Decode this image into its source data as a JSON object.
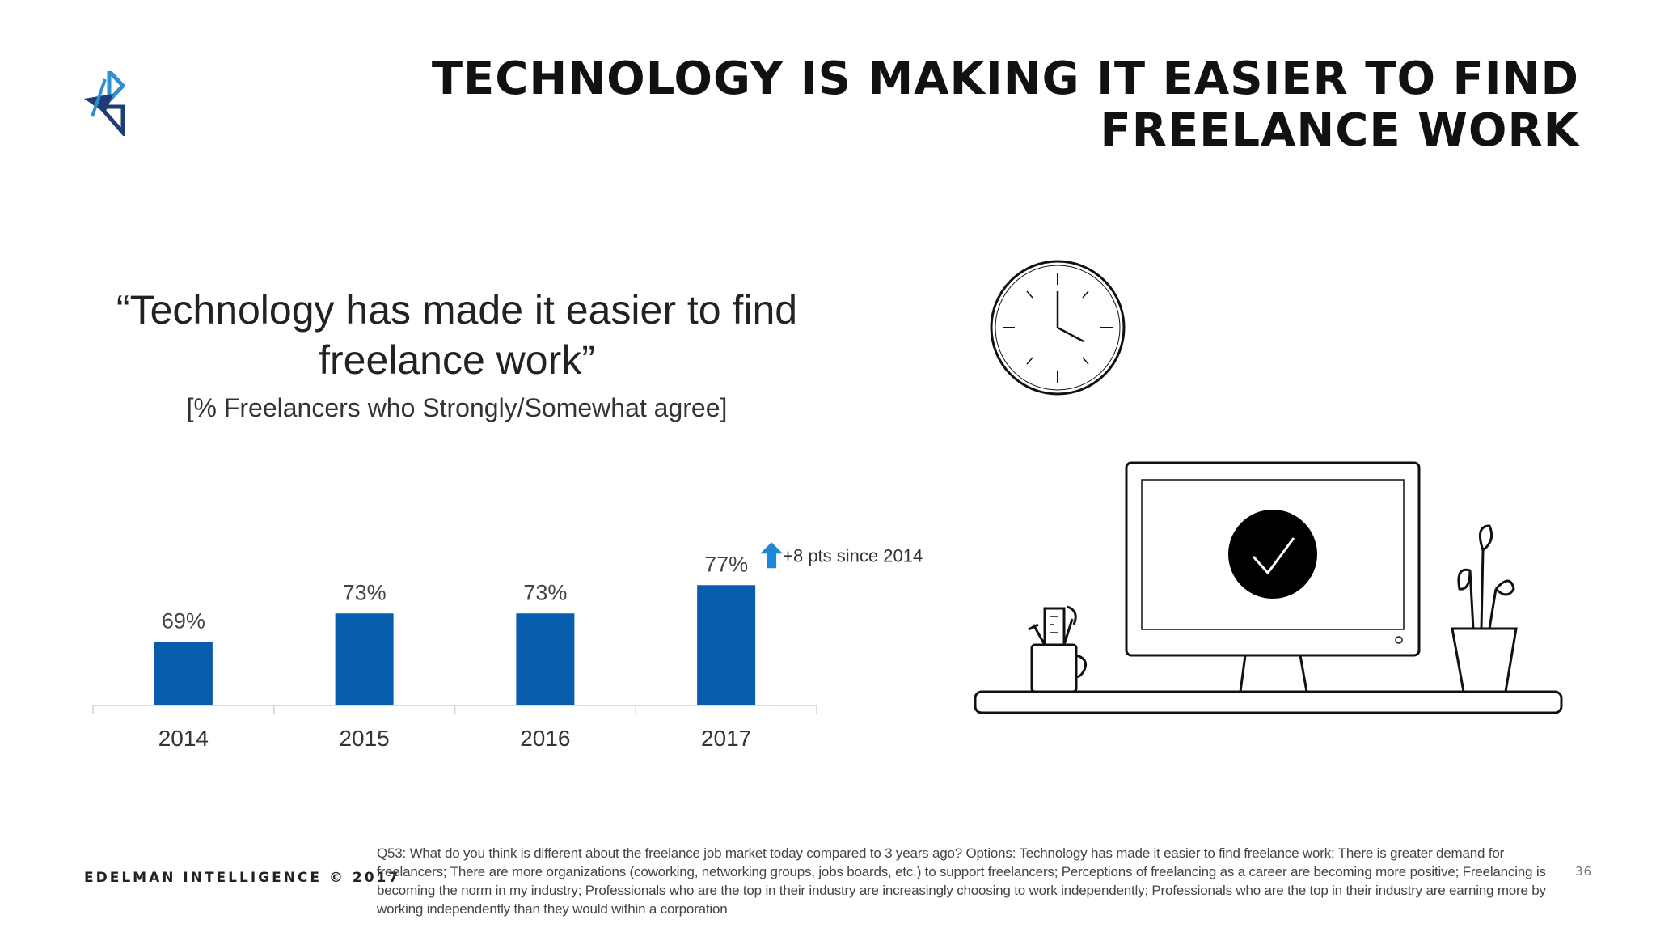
{
  "slide": {
    "title": "TECHNOLOGY IS MAKING IT EASIER TO FIND FREELANCE WORK",
    "quote": "“Technology has made it easier to find freelance work”",
    "subtitle": "[% Freelancers who Strongly/Somewhat agree]",
    "footer_brand": "EDELMAN INTELLIGENCE © 2017",
    "footnote": "Q53: What do you think is different about the freelance job market today compared to 3 years ago? Options: Technology has made it easier to find freelance work; There is greater demand for freelancers; There are more organizations (coworking, networking groups, jobs boards, etc.) to support freelancers; Perceptions of freelancing as a career are becoming more positive; Freelancing is becoming the norm in my industry; Professionals who are the top in their industry are increasingly choosing to work independently; Professionals who are the top in their industry are earning more by working independently than they would within a corporation",
    "page_number": "36"
  },
  "colors": {
    "bar": "#075CAB",
    "arrow": "#1E88D6",
    "logo_dark": "#1F3C77",
    "logo_light": "#2F8FD2"
  },
  "icons": [
    "logo-icon",
    "up-arrow-icon",
    "clock-icon",
    "monitor-icon",
    "checkmark-icon",
    "pencil-cup-icon",
    "plant-icon",
    "desk-icon"
  ],
  "chart_data": {
    "type": "bar",
    "categories": [
      "2014",
      "2015",
      "2016",
      "2017"
    ],
    "values": [
      69,
      73,
      73,
      77
    ],
    "value_labels": [
      "69%",
      "73%",
      "73%",
      "77%"
    ],
    "annotation": "+8 pts since 2014",
    "annotation_series_index": 3,
    "title": "“Technology has made it easier to find freelance work”",
    "subtitle": "[% Freelancers who Strongly/Somewhat agree]",
    "xlabel": "",
    "ylabel": "",
    "ylim": [
      0,
      100
    ],
    "grid": false,
    "legend": "none"
  }
}
